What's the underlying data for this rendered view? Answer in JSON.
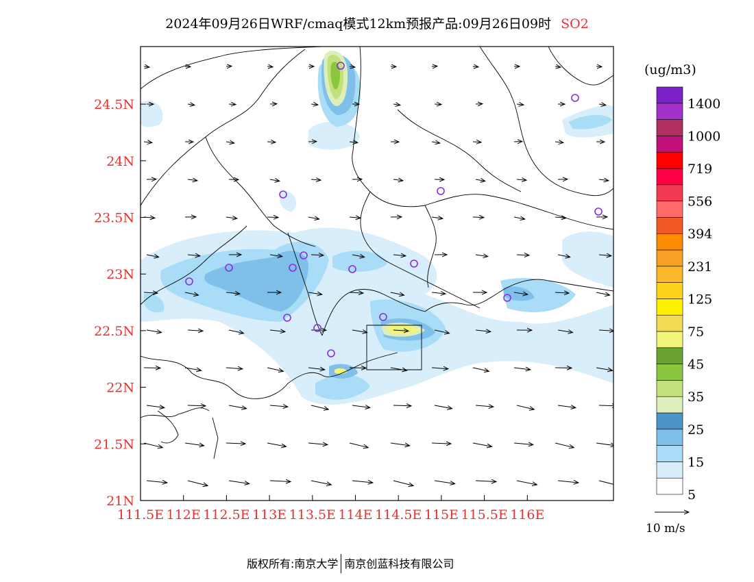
{
  "title": {
    "main": "2024年09月26日WRF/cmaq模式12km预报产品:09月26日09时",
    "species": "SO2",
    "species_color": "#e8312f"
  },
  "map": {
    "x_ticks": [
      "111.5E",
      "112E",
      "112.5E",
      "113E",
      "113.5E",
      "114E",
      "114.5E",
      "115E",
      "115.5E",
      "116E"
    ],
    "y_ticks": [
      "24.5N",
      "24N",
      "23.5N",
      "23N",
      "22.5N",
      "22N",
      "21.5N",
      "21N"
    ],
    "tick_color": "#e8312f",
    "stations": 16
  },
  "colorbar": {
    "unit": "(ug/m3)",
    "labels": [
      "1400",
      "1000",
      "719",
      "556",
      "394",
      "231",
      "125",
      "75",
      "45",
      "35",
      "25",
      "15",
      "5"
    ],
    "colors": [
      "#ffffff",
      "#d8eefa",
      "#a9dcf6",
      "#7ec0ea",
      "#4b95c8",
      "#ddeebb",
      "#c2e07b",
      "#8bc63f",
      "#6aa332",
      "#f3f57a",
      "#f2dc55",
      "#fff200",
      "#ffd21c",
      "#fbb82a",
      "#f7a023",
      "#fb8c00",
      "#f15a24",
      "#ff6b6b",
      "#f23b52",
      "#ff0044",
      "#ff0000",
      "#c2107a",
      "#b03060",
      "#a333c8",
      "#7b22c9"
    ],
    "wind_ref": "10 m/s"
  },
  "footer": {
    "left": "版权所有:南京大学",
    "right": "南京创蓝科技有限公司"
  }
}
